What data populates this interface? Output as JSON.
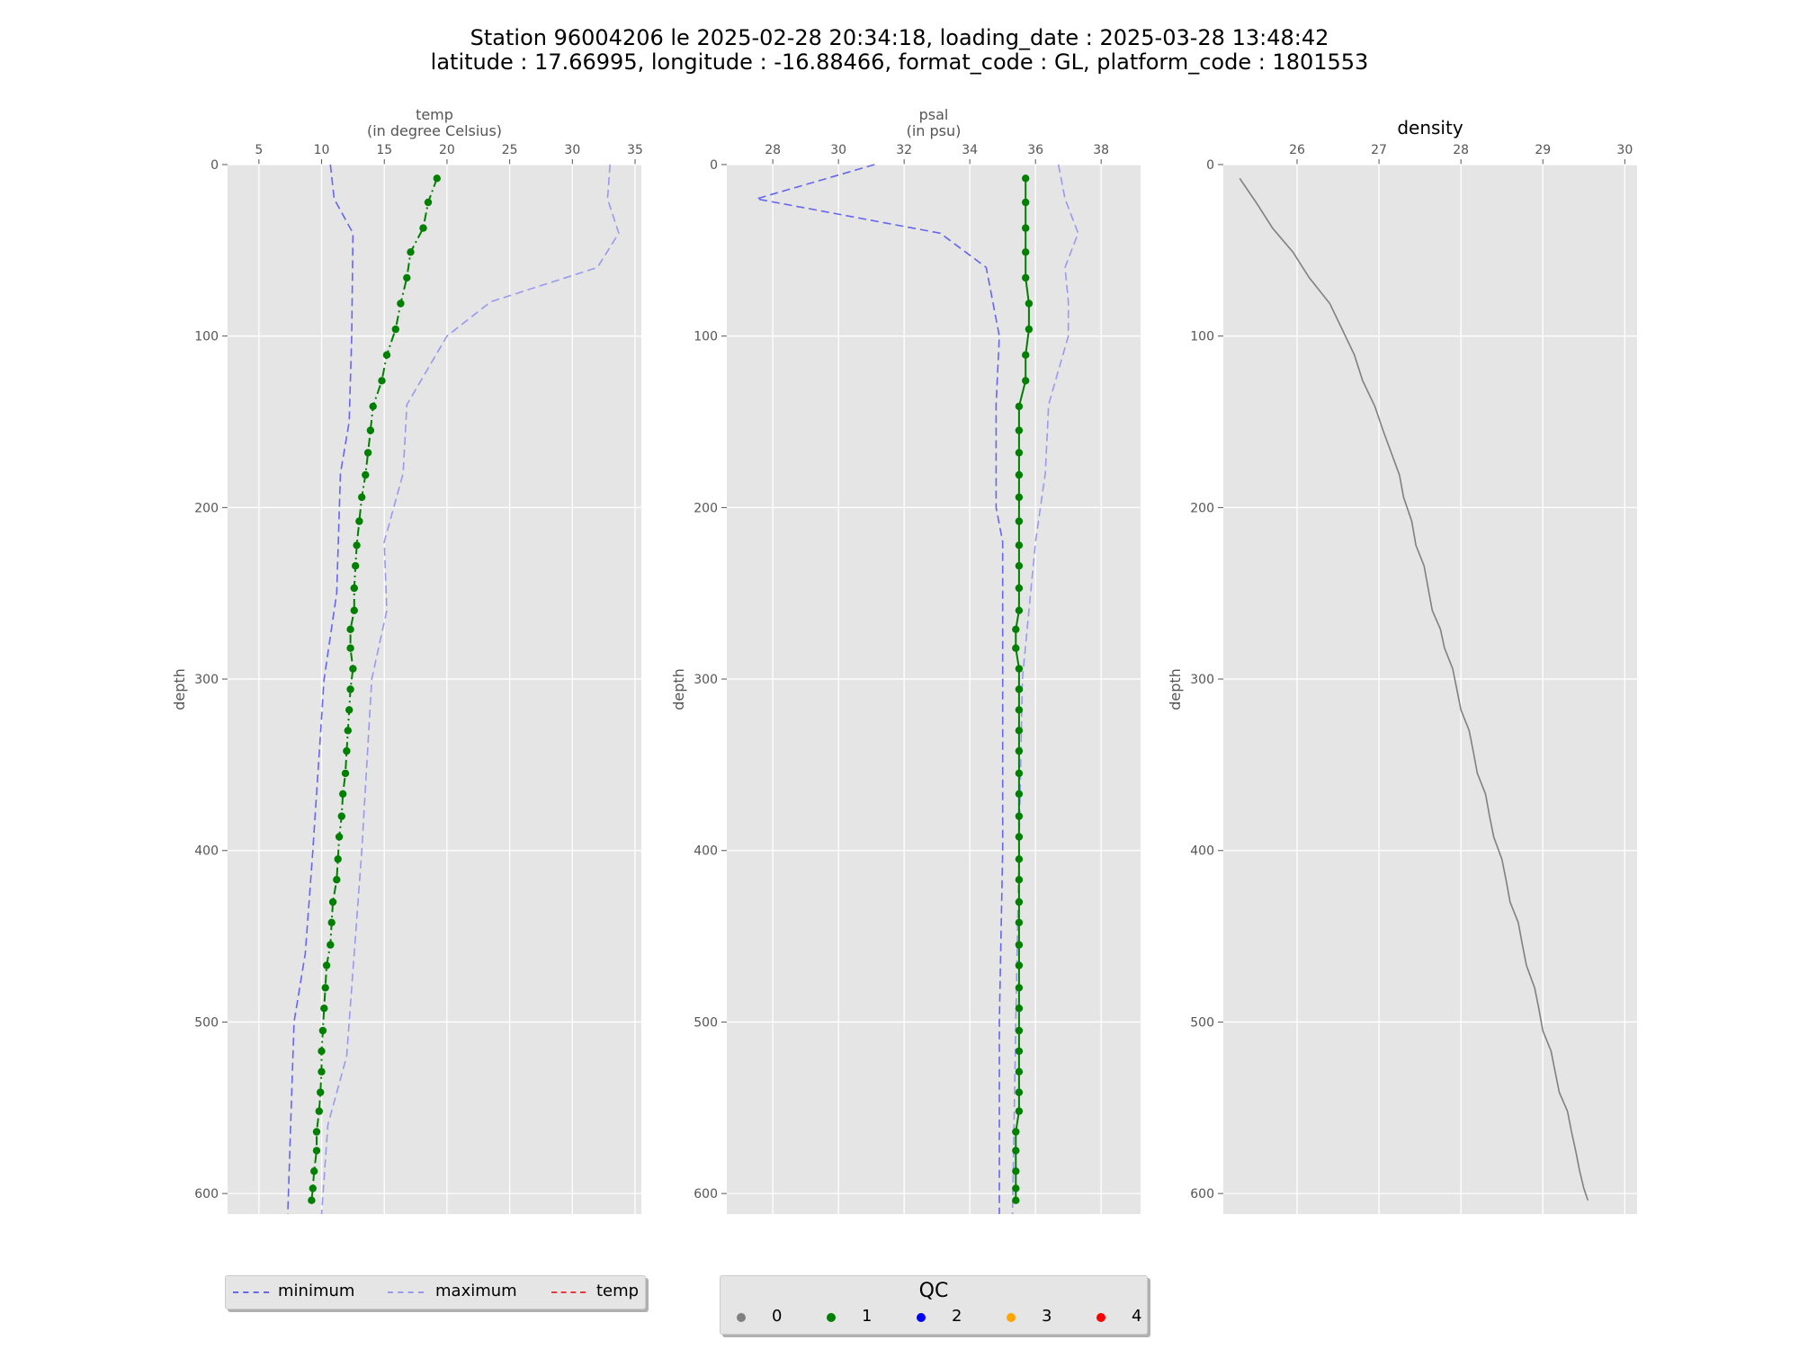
{
  "title": {
    "line1": "Station 96004206 le 2025-02-28 20:34:18, loading_date : 2025-03-28 13:48:42",
    "line2": "latitude : 17.66995, longitude : -16.88466, format_code : GL, platform_code : 1801553"
  },
  "legend_left": {
    "items": [
      {
        "label": "minimum",
        "style": "dashed",
        "color": "#6666ee"
      },
      {
        "label": "maximum",
        "style": "dashed",
        "color": "#9999ee"
      },
      {
        "label": "temp",
        "style": "dashdot",
        "color": "#e83a3a"
      }
    ]
  },
  "legend_qc": {
    "title": "QC",
    "items": [
      {
        "label": "0",
        "color": "#808080"
      },
      {
        "label": "1",
        "color": "#008000"
      },
      {
        "label": "2",
        "color": "#0000ff"
      },
      {
        "label": "3",
        "color": "#ffa500"
      },
      {
        "label": "4",
        "color": "#ff0000"
      }
    ]
  },
  "chart_data": [
    {
      "type": "line",
      "title": "temp\n(in degree Celsius)",
      "ylabel": "depth",
      "xlim": [
        2.5,
        35.5
      ],
      "ylim": [
        612,
        0
      ],
      "x_ticks": [
        5,
        10,
        15,
        20,
        25,
        30,
        35
      ],
      "y_ticks": [
        0,
        100,
        200,
        300,
        400,
        500,
        600
      ],
      "grid": true,
      "series": [
        {
          "name": "minimum",
          "style": "dashed",
          "color": "#6666ee",
          "points": [
            [
              10.7,
              0
            ],
            [
              11.0,
              20
            ],
            [
              12.5,
              40
            ],
            [
              12.4,
              100
            ],
            [
              12.2,
              150
            ],
            [
              11.5,
              180
            ],
            [
              11.2,
              250
            ],
            [
              10.2,
              300
            ],
            [
              9.3,
              400
            ],
            [
              8.7,
              460
            ],
            [
              7.8,
              500
            ],
            [
              7.3,
              612
            ]
          ]
        },
        {
          "name": "maximum",
          "style": "dashed",
          "color": "#9999ee",
          "points": [
            [
              33.0,
              0
            ],
            [
              32.8,
              20
            ],
            [
              33.7,
              40
            ],
            [
              32.0,
              60
            ],
            [
              23.5,
              80
            ],
            [
              20.0,
              100
            ],
            [
              16.8,
              140
            ],
            [
              16.5,
              180
            ],
            [
              15.0,
              220
            ],
            [
              15.2,
              260
            ],
            [
              14.0,
              300
            ],
            [
              13.2,
              400
            ],
            [
              12.0,
              520
            ],
            [
              10.5,
              560
            ],
            [
              10.0,
              612
            ]
          ]
        },
        {
          "name": "temp",
          "style": "dashdot",
          "color": "#008000",
          "markers": true,
          "points": [
            [
              19.2,
              8
            ],
            [
              18.5,
              22
            ],
            [
              18.1,
              37
            ],
            [
              17.1,
              51
            ],
            [
              16.8,
              66
            ],
            [
              16.3,
              81
            ],
            [
              15.9,
              96
            ],
            [
              15.2,
              111
            ],
            [
              14.8,
              126
            ],
            [
              14.1,
              141
            ],
            [
              13.9,
              155
            ],
            [
              13.7,
              168
            ],
            [
              13.5,
              181
            ],
            [
              13.2,
              194
            ],
            [
              13.0,
              208
            ],
            [
              12.8,
              222
            ],
            [
              12.7,
              234
            ],
            [
              12.6,
              247
            ],
            [
              12.6,
              260
            ],
            [
              12.3,
              271
            ],
            [
              12.3,
              282
            ],
            [
              12.5,
              294
            ],
            [
              12.3,
              306
            ],
            [
              12.2,
              318
            ],
            [
              12.1,
              330
            ],
            [
              12.0,
              342
            ],
            [
              11.9,
              355
            ],
            [
              11.7,
              367
            ],
            [
              11.6,
              380
            ],
            [
              11.4,
              392
            ],
            [
              11.3,
              405
            ],
            [
              11.2,
              417
            ],
            [
              10.9,
              430
            ],
            [
              10.8,
              442
            ],
            [
              10.7,
              455
            ],
            [
              10.4,
              467
            ],
            [
              10.3,
              480
            ],
            [
              10.2,
              492
            ],
            [
              10.1,
              505
            ],
            [
              10.0,
              517
            ],
            [
              10.0,
              529
            ],
            [
              9.9,
              541
            ],
            [
              9.8,
              552
            ],
            [
              9.6,
              564
            ],
            [
              9.6,
              575
            ],
            [
              9.4,
              587
            ],
            [
              9.3,
              597
            ],
            [
              9.2,
              604
            ]
          ]
        }
      ]
    },
    {
      "type": "line",
      "title": "psal\n(in psu)",
      "ylabel": "depth",
      "xlim": [
        26.6,
        39.2
      ],
      "ylim": [
        612,
        0
      ],
      "x_ticks": [
        28,
        30,
        32,
        34,
        36,
        38
      ],
      "y_ticks": [
        0,
        100,
        200,
        300,
        400,
        500,
        600
      ],
      "grid": true,
      "series": [
        {
          "name": "minimum",
          "style": "dashed",
          "color": "#6666ee",
          "points": [
            [
              31.1,
              0
            ],
            [
              27.5,
              20
            ],
            [
              33.1,
              40
            ],
            [
              34.5,
              60
            ],
            [
              34.9,
              100
            ],
            [
              34.8,
              140
            ],
            [
              34.8,
              200
            ],
            [
              35.0,
              220
            ],
            [
              35.0,
              400
            ],
            [
              34.9,
              500
            ],
            [
              34.9,
              612
            ]
          ]
        },
        {
          "name": "maximum",
          "style": "dashed",
          "color": "#9999ee",
          "points": [
            [
              36.7,
              0
            ],
            [
              36.9,
              20
            ],
            [
              37.3,
              40
            ],
            [
              36.9,
              60
            ],
            [
              37.0,
              80
            ],
            [
              37.0,
              100
            ],
            [
              36.7,
              120
            ],
            [
              36.4,
              140
            ],
            [
              36.3,
              180
            ],
            [
              36.0,
              220
            ],
            [
              35.8,
              260
            ],
            [
              35.6,
              300
            ],
            [
              35.5,
              400
            ],
            [
              35.4,
              500
            ],
            [
              35.3,
              612
            ]
          ]
        },
        {
          "name": "psal",
          "style": "solid",
          "color": "#008000",
          "markers": true,
          "points": [
            [
              35.7,
              8
            ],
            [
              35.7,
              22
            ],
            [
              35.7,
              37
            ],
            [
              35.7,
              51
            ],
            [
              35.7,
              66
            ],
            [
              35.8,
              81
            ],
            [
              35.8,
              96
            ],
            [
              35.7,
              111
            ],
            [
              35.7,
              126
            ],
            [
              35.5,
              141
            ],
            [
              35.5,
              155
            ],
            [
              35.5,
              168
            ],
            [
              35.5,
              181
            ],
            [
              35.5,
              194
            ],
            [
              35.5,
              208
            ],
            [
              35.5,
              222
            ],
            [
              35.5,
              234
            ],
            [
              35.5,
              247
            ],
            [
              35.5,
              260
            ],
            [
              35.4,
              271
            ],
            [
              35.4,
              282
            ],
            [
              35.5,
              294
            ],
            [
              35.5,
              306
            ],
            [
              35.5,
              318
            ],
            [
              35.5,
              330
            ],
            [
              35.5,
              342
            ],
            [
              35.5,
              355
            ],
            [
              35.5,
              367
            ],
            [
              35.5,
              380
            ],
            [
              35.5,
              392
            ],
            [
              35.5,
              405
            ],
            [
              35.5,
              417
            ],
            [
              35.5,
              430
            ],
            [
              35.5,
              442
            ],
            [
              35.5,
              455
            ],
            [
              35.5,
              467
            ],
            [
              35.5,
              480
            ],
            [
              35.5,
              492
            ],
            [
              35.5,
              505
            ],
            [
              35.5,
              517
            ],
            [
              35.5,
              529
            ],
            [
              35.5,
              541
            ],
            [
              35.5,
              552
            ],
            [
              35.4,
              564
            ],
            [
              35.4,
              575
            ],
            [
              35.4,
              587
            ],
            [
              35.4,
              597
            ],
            [
              35.4,
              604
            ]
          ]
        }
      ]
    },
    {
      "type": "line",
      "title": "density",
      "ylabel": "depth",
      "xlim": [
        25.1,
        30.15
      ],
      "ylim": [
        612,
        0
      ],
      "x_ticks": [
        26,
        27,
        28,
        29,
        30
      ],
      "y_ticks": [
        0,
        100,
        200,
        300,
        400,
        500,
        600
      ],
      "grid": true,
      "series": [
        {
          "name": "density",
          "style": "solid",
          "color": "#808080",
          "points": [
            [
              25.3,
              8
            ],
            [
              25.5,
              22
            ],
            [
              25.7,
              37
            ],
            [
              25.95,
              51
            ],
            [
              26.15,
              66
            ],
            [
              26.4,
              81
            ],
            [
              26.55,
              96
            ],
            [
              26.7,
              111
            ],
            [
              26.8,
              126
            ],
            [
              26.95,
              141
            ],
            [
              27.05,
              155
            ],
            [
              27.15,
              168
            ],
            [
              27.25,
              181
            ],
            [
              27.3,
              194
            ],
            [
              27.4,
              208
            ],
            [
              27.45,
              222
            ],
            [
              27.55,
              234
            ],
            [
              27.6,
              247
            ],
            [
              27.65,
              260
            ],
            [
              27.75,
              271
            ],
            [
              27.8,
              282
            ],
            [
              27.9,
              294
            ],
            [
              27.95,
              306
            ],
            [
              28.0,
              318
            ],
            [
              28.1,
              330
            ],
            [
              28.15,
              342
            ],
            [
              28.2,
              355
            ],
            [
              28.3,
              367
            ],
            [
              28.35,
              380
            ],
            [
              28.4,
              392
            ],
            [
              28.5,
              405
            ],
            [
              28.55,
              417
            ],
            [
              28.6,
              430
            ],
            [
              28.7,
              442
            ],
            [
              28.75,
              455
            ],
            [
              28.8,
              467
            ],
            [
              28.9,
              480
            ],
            [
              28.95,
              492
            ],
            [
              29.0,
              505
            ],
            [
              29.1,
              517
            ],
            [
              29.15,
              529
            ],
            [
              29.2,
              541
            ],
            [
              29.3,
              552
            ],
            [
              29.35,
              564
            ],
            [
              29.4,
              575
            ],
            [
              29.45,
              587
            ],
            [
              29.5,
              597
            ],
            [
              29.55,
              604
            ]
          ]
        }
      ]
    }
  ]
}
